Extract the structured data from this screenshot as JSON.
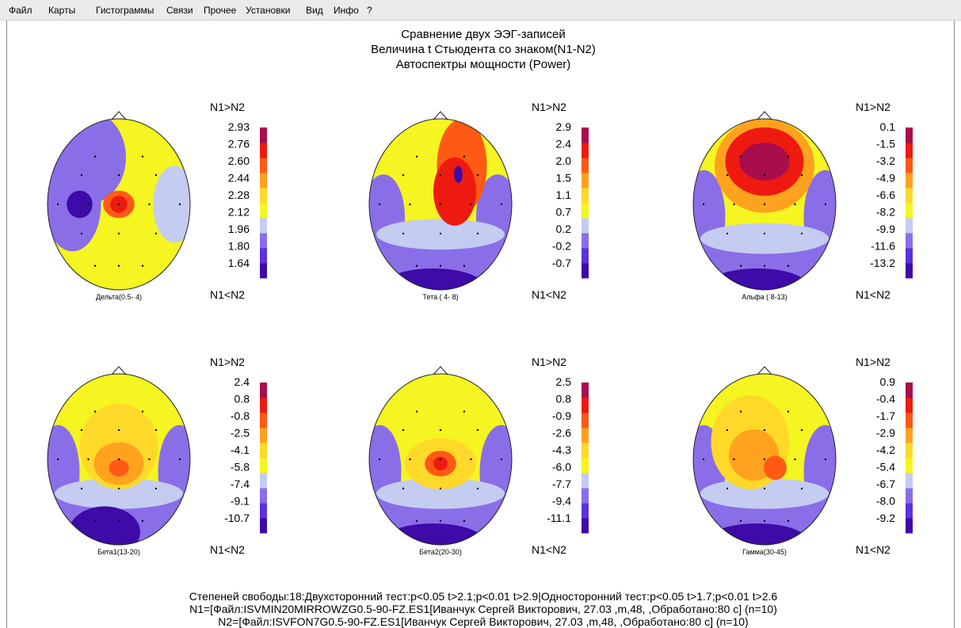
{
  "menu": [
    "Файл",
    "Карты",
    "Гистограммы",
    "Связи",
    "Прочее",
    "Установки",
    "Вид",
    "Инфо",
    "?"
  ],
  "titles": {
    "line1": "Сравнение двух ЭЭГ-записей",
    "line2": "Величина t Стьюдента со знаком(N1-N2)",
    "line3": "Автоспектры мощности (Power)"
  },
  "legend_labels": {
    "top": "N1>N2",
    "bottom": "N1<N2"
  },
  "colors": {
    "colorbar": [
      "#3e0aa8",
      "#5a32de",
      "#8a6ee8",
      "#c4ccf2",
      "#f5f522",
      "#ffd92a",
      "#ffa21e",
      "#ff5a14",
      "#ee1a10",
      "#a80d4e"
    ]
  },
  "maps": [
    {
      "label": "Дельта(0.5- 4)",
      "scale": [
        "2.93",
        "2.76",
        "2.60",
        "2.44",
        "2.28",
        "2.12",
        "1.96",
        "1.80",
        "1.64"
      ]
    },
    {
      "label": "Тета ( 4- 8)",
      "scale": [
        "2.9",
        "2.4",
        "2.0",
        "1.5",
        "1.1",
        "0.7",
        "0.2",
        "-0.2",
        "-0.7"
      ]
    },
    {
      "label": "Альфа ( 8-13)",
      "scale": [
        "0.1",
        "-1.5",
        "-3.2",
        "-4.9",
        "-6.6",
        "-8.2",
        "-9.9",
        "-11.6",
        "-13.2"
      ]
    },
    {
      "label": "Бета1(13-20)",
      "scale": [
        "2.4",
        "0.8",
        "-0.8",
        "-2.5",
        "-4.1",
        "-5.8",
        "-7.4",
        "-9.1",
        "-10.7"
      ]
    },
    {
      "label": "Бета2(20-30)",
      "scale": [
        "2.5",
        "0.8",
        "-0.9",
        "-2.6",
        "-4.3",
        "-6.0",
        "-7.7",
        "-9.4",
        "-11.1"
      ]
    },
    {
      "label": "Гамма(30-45)",
      "scale": [
        "0.9",
        "-0.4",
        "-1.7",
        "-2.9",
        "-4.2",
        "-5.4",
        "-6.7",
        "-8.0",
        "-9.2"
      ]
    }
  ],
  "footer": {
    "line1": "Степеней свободы:18:Двухсторонний тест:p<0.05 t>2.1;p<0.01 t>2.9|Односторонний тест:p<0.05 t>1.7;p<0.01 t>2.6",
    "line2": "N1=[Файл:ISVMIN20MIRROWZG0.5-90-FZ.ES1[Иванчук Сергей Викторович, 27.03 ,m,48, ,Обработано:80 с] (n=10)",
    "line3": "N2=[Файл:ISVFON7G0.5-90-FZ.ES1[Иванчук Сергей Викторович, 27.03 ,m,48, ,Обработано:80 с] (n=10)"
  }
}
